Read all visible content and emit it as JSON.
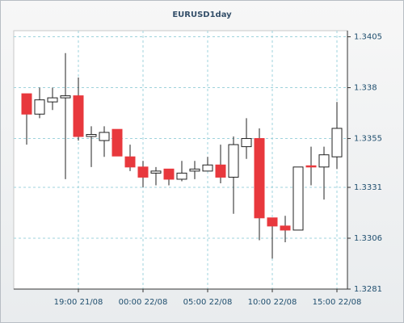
{
  "chart_data": {
    "type": "candlestick",
    "title": "EURUSD1day",
    "categories": [
      null,
      null,
      null,
      null,
      "19:00 21/08",
      null,
      null,
      null,
      null,
      "00:00 22/08",
      null,
      null,
      null,
      null,
      "05:00 22/08",
      null,
      null,
      null,
      null,
      "10:00 22/08",
      null,
      null,
      null,
      null,
      "15:00 22/08"
    ],
    "open": [
      1.3377,
      1.3367,
      1.3373,
      1.3375,
      1.3376,
      1.3356,
      1.3354,
      1.33595,
      1.3346,
      1.3341,
      1.3338,
      1.334,
      1.3335,
      1.3339,
      1.3339,
      1.3342,
      1.3336,
      1.3351,
      1.3355,
      1.3316,
      1.3312,
      1.331,
      1.33416,
      1.3341,
      1.3346
    ],
    "high": [
      1.3377,
      1.338,
      1.338,
      1.3397,
      1.3385,
      1.3361,
      1.3361,
      1.33595,
      1.3352,
      1.3344,
      1.3341,
      1.334,
      1.3344,
      1.3344,
      1.3346,
      1.3352,
      1.3356,
      1.3365,
      1.336,
      1.3316,
      1.3317,
      1.3341,
      1.3351,
      1.3351,
      1.3373
    ],
    "low": [
      1.3352,
      1.3365,
      1.3369,
      1.3335,
      1.3354,
      1.3341,
      1.3346,
      1.33464,
      1.3339,
      1.3331,
      1.3332,
      1.3332,
      1.3334,
      1.3335,
      1.33389,
      1.3333,
      1.3318,
      1.3345,
      1.3305,
      1.3296,
      1.3304,
      1.331,
      1.3332,
      1.3325,
      1.334
    ],
    "close": [
      1.3367,
      1.3374,
      1.3375,
      1.3376,
      1.3356,
      1.3357,
      1.3358,
      1.33464,
      1.3341,
      1.3336,
      1.3339,
      1.3335,
      1.3338,
      1.334,
      1.3342,
      1.3336,
      1.3352,
      1.3355,
      1.3316,
      1.3312,
      1.331,
      1.3341,
      1.3341,
      1.3347,
      1.336
    ],
    "up_color": "#ffffff",
    "down_color": "#e8383d",
    "ylim": [
      1.3281,
      1.3408
    ],
    "yticks": [
      1.3281,
      1.3306,
      1.3331,
      1.3355,
      1.338,
      1.3405
    ],
    "grid": true
  }
}
